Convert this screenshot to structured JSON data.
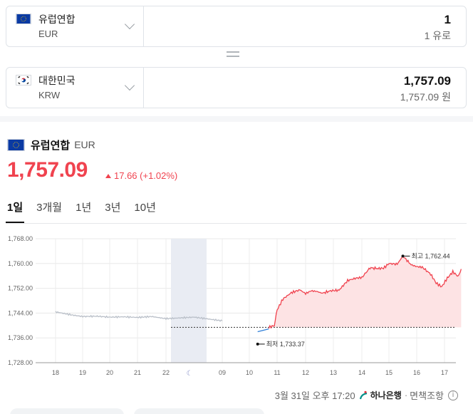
{
  "converter": {
    "from": {
      "name": "유럽연합",
      "code": "EUR",
      "amount": "1",
      "amount_sub": "1 유로"
    },
    "to": {
      "name": "대한민국",
      "code": "KRW",
      "amount": "1,757.09",
      "amount_sub": "1,757.09 원"
    }
  },
  "quote": {
    "name": "유럽연합",
    "code": "EUR",
    "price": "1,757.09",
    "change": "17.66 (+1.02%)"
  },
  "tabs": [
    "1일",
    "3개월",
    "1년",
    "3년",
    "10년"
  ],
  "active_tab": "1일",
  "chart_data": {
    "type": "line",
    "y_ticks": [
      "1,768.00",
      "1,760.00",
      "1,752.00",
      "1,744.00",
      "1,736.00",
      "1,728.00"
    ],
    "ylim": [
      1728,
      1768
    ],
    "x_ticks": [
      "18",
      "19",
      "20",
      "21",
      "22",
      "09",
      "10",
      "11",
      "12",
      "13",
      "14",
      "15",
      "16",
      "17"
    ],
    "baseline": 1739.4,
    "annotations": {
      "high_label": "최고 1,762.44",
      "low_label": "최저 1,733.37"
    },
    "series": [
      {
        "kind": "history",
        "color": "#b9bfc8",
        "x": [
          0,
          0.6,
          1.0,
          1.5,
          2.0,
          2.5,
          3.0,
          3.5,
          4.0,
          4.5,
          5.0
        ],
        "y": [
          1744.4,
          1743.4,
          1742.9,
          1743.0,
          1742.7,
          1742.8,
          1742.6,
          1742.9,
          1742.2,
          1742.7,
          1741.5
        ]
      },
      {
        "kind": "premarket",
        "color": "#2f7fd8",
        "x": [
          6.3,
          6.7
        ],
        "y": [
          1738.0,
          1738.9
        ]
      },
      {
        "kind": "today",
        "color": "#f0434f",
        "x": [
          6.7,
          6.9,
          7.0,
          7.2,
          7.5,
          7.8,
          8.0,
          8.2,
          8.4,
          8.6,
          8.9,
          9.2,
          9.5,
          9.8,
          10.0,
          10.3,
          10.6,
          10.8,
          11.0,
          11.3,
          11.5,
          11.8,
          12.0,
          12.2,
          12.5,
          12.7,
          12.9,
          13.1,
          13.3,
          13.5,
          13.6
        ],
        "y": [
          1739.4,
          1740.0,
          1745.0,
          1748.5,
          1750.6,
          1751.5,
          1750.3,
          1751.2,
          1751.0,
          1750.4,
          1751.2,
          1751.4,
          1754.5,
          1755.3,
          1755.5,
          1758.6,
          1758.4,
          1758.5,
          1760.0,
          1759.8,
          1762.4,
          1759.6,
          1759.0,
          1758.8,
          1756.6,
          1753.7,
          1752.5,
          1755.3,
          1757.3,
          1755.8,
          1758.2
        ]
      }
    ]
  },
  "footer": {
    "timestamp": "3월 31일 오후 17:20",
    "bank": "하나은행",
    "disclaimer": "면책조항"
  },
  "colors": {
    "up": "#f0434f",
    "fill": "#fde3e4",
    "history": "#b9bfc8",
    "premarket": "#2f7fd8",
    "eu_blue": "#0a3aa3",
    "eu_star": "#ffcc00"
  }
}
